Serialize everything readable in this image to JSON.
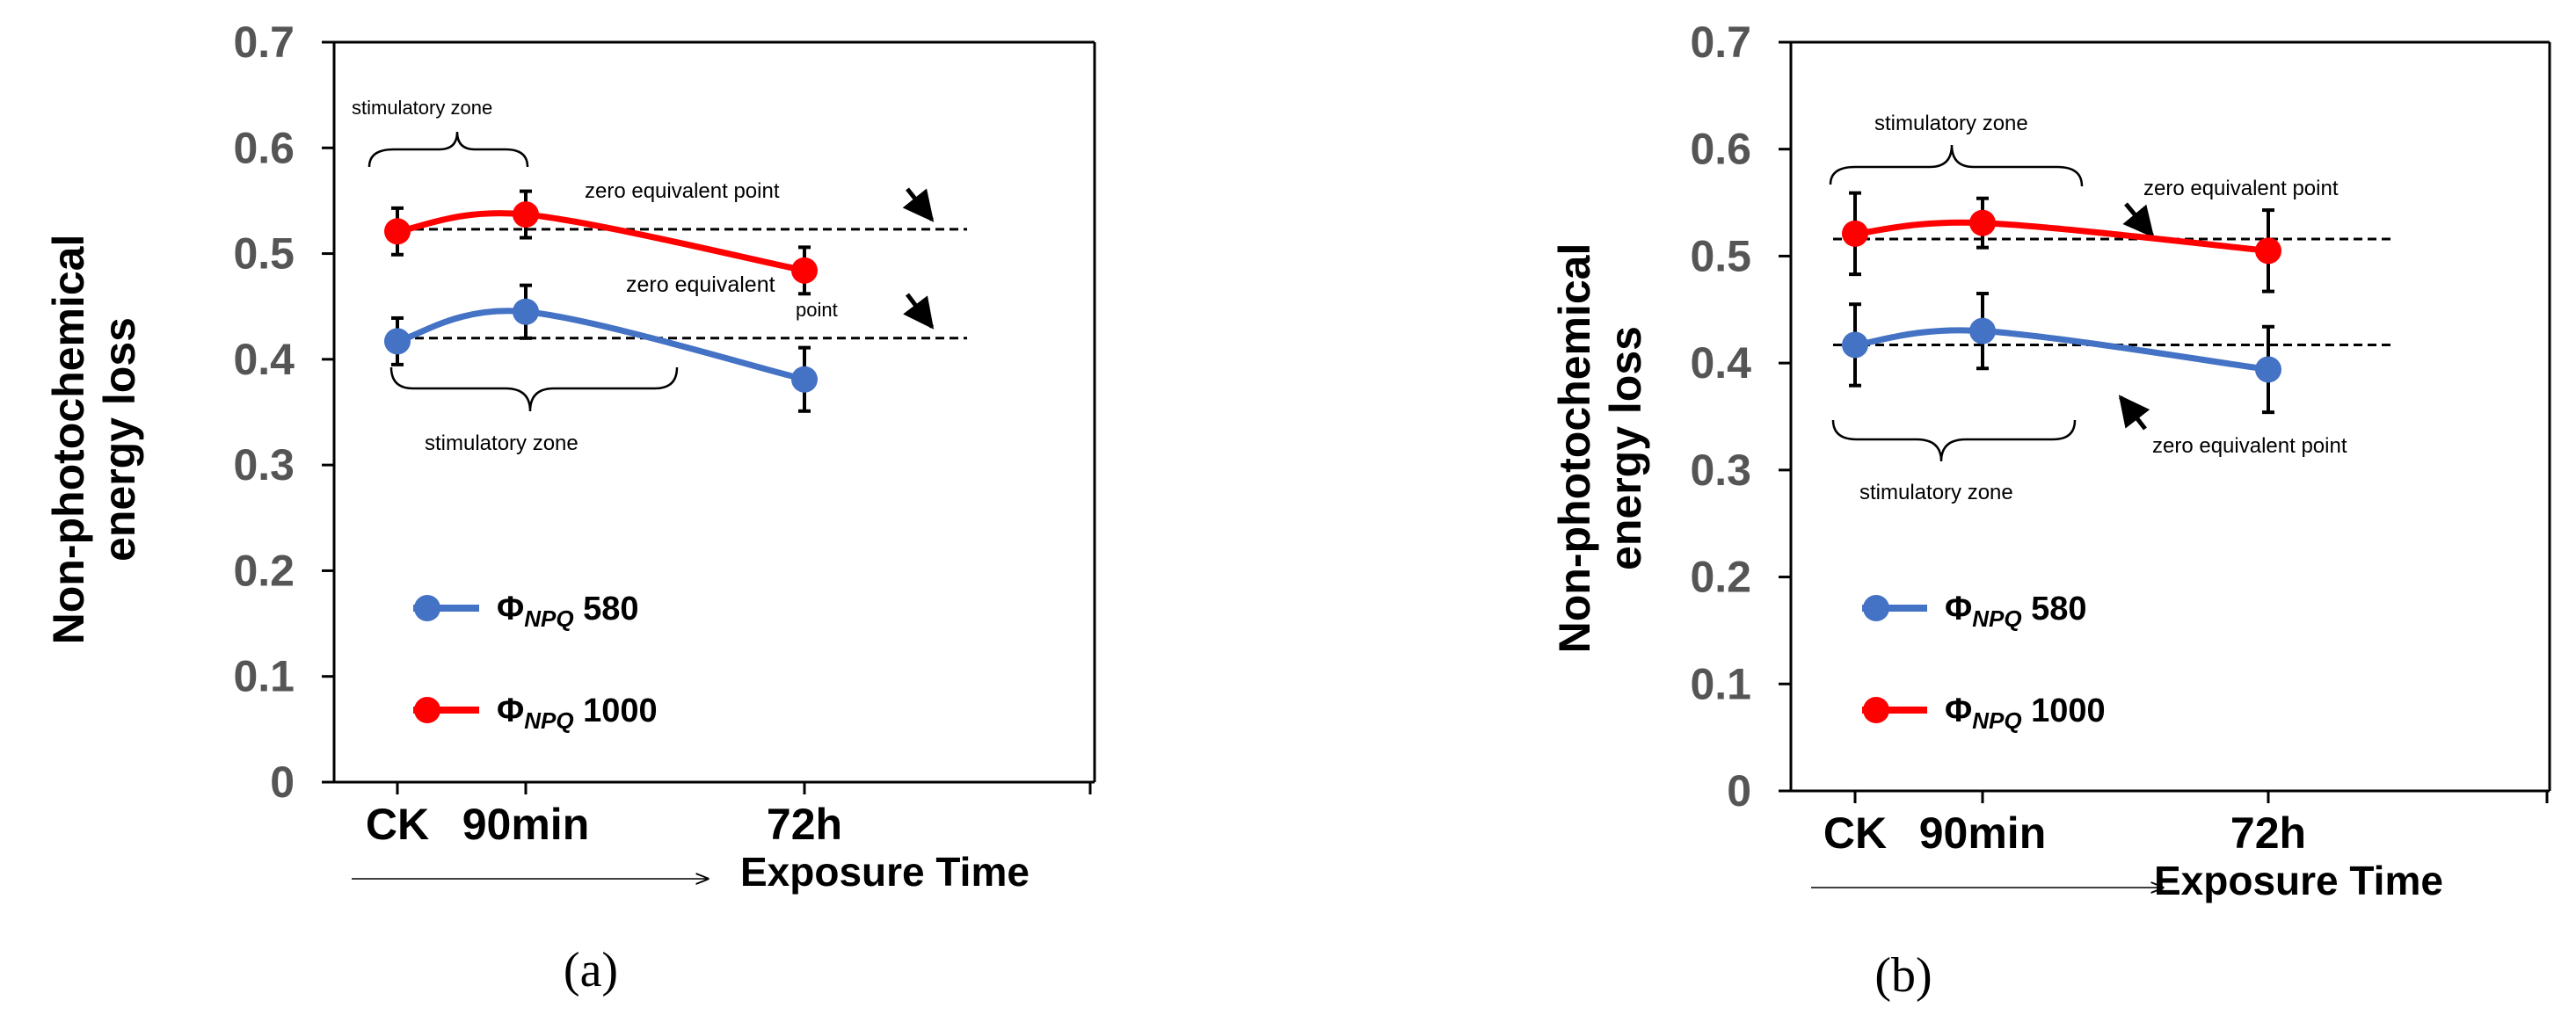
{
  "chart_data": [
    {
      "type": "line",
      "panel_label": "(a)",
      "ylabel_line1": "Non-photochemical",
      "ylabel_line2": "energy loss",
      "xlabel": "Exposure Time",
      "categories": [
        "CK",
        "90min",
        "72h"
      ],
      "ylim": [
        0,
        0.7
      ],
      "yticks": [
        "0",
        "0.1",
        "0.2",
        "0.3",
        "0.4",
        "0.5",
        "0.6",
        "0.7"
      ],
      "legend_placement": "center-left",
      "grid": false,
      "series": [
        {
          "name": "ΦNPQ 580",
          "symbol": "Φ",
          "sub": "NPQ",
          "wl": "580",
          "color": "#4472C4",
          "values": [
            0.417,
            0.445,
            0.381
          ],
          "errors": [
            0.022,
            0.025,
            0.03
          ]
        },
        {
          "name": "ΦNPQ 1000",
          "symbol": "Φ",
          "sub": "NPQ",
          "wl": "1000",
          "color": "#FF0000",
          "values": [
            0.521,
            0.537,
            0.484
          ],
          "errors": [
            0.022,
            0.022,
            0.022
          ]
        }
      ],
      "reference_lines": [
        0.523,
        0.42
      ],
      "annotations": {
        "top_zone": "stimulatory zone",
        "top_zero": "zero equivalent point",
        "mid_zero_1": "zero equivalent",
        "mid_zero_2": "point",
        "bottom_zone": "stimulatory zone"
      }
    },
    {
      "type": "line",
      "panel_label": "(b)",
      "ylabel_line1": "Non-photochemical",
      "ylabel_line2": "energy loss",
      "xlabel": "Exposure Time",
      "categories": [
        "CK",
        "90min",
        "72h"
      ],
      "ylim": [
        0,
        0.7
      ],
      "yticks": [
        "0",
        "0.1",
        "0.2",
        "0.3",
        "0.4",
        "0.5",
        "0.6",
        "0.7"
      ],
      "legend_placement": "center-left",
      "grid": false,
      "series": [
        {
          "name": "ΦNPQ 580",
          "symbol": "Φ",
          "sub": "NPQ",
          "wl": "580",
          "color": "#4472C4",
          "values": [
            0.417,
            0.43,
            0.394
          ],
          "errors": [
            0.038,
            0.035,
            0.04
          ]
        },
        {
          "name": "ΦNPQ 1000",
          "symbol": "Φ",
          "sub": "NPQ",
          "wl": "1000",
          "color": "#FF0000",
          "values": [
            0.521,
            0.531,
            0.505
          ],
          "errors": [
            0.038,
            0.023,
            0.038
          ]
        }
      ],
      "reference_lines": [
        0.516,
        0.417
      ],
      "annotations": {
        "top_zone": "stimulatory zone",
        "top_zero": "zero equivalent point",
        "bottom_zero": "zero equivalent point",
        "bottom_zone": "stimulatory zone"
      }
    }
  ]
}
